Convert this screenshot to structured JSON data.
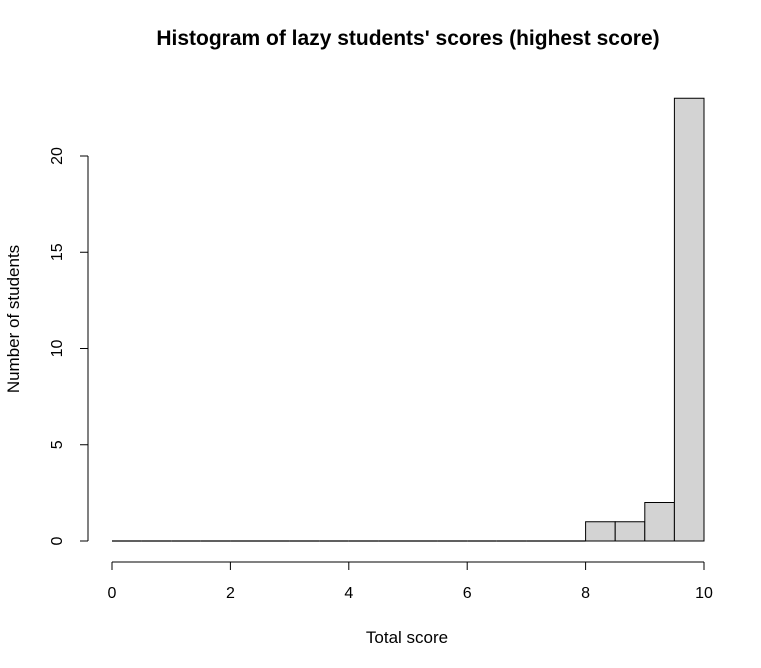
{
  "chart_data": {
    "type": "bar",
    "title": "Histogram of lazy students' scores (highest score)",
    "xlabel": "Total score",
    "ylabel": "Number of students",
    "xlim": [
      0,
      10
    ],
    "ylim": [
      0,
      23
    ],
    "x_ticks": [
      "0",
      "2",
      "4",
      "6",
      "8",
      "10"
    ],
    "y_ticks": [
      "0",
      "5",
      "10",
      "15",
      "20"
    ],
    "bins": [
      {
        "start": 0.0,
        "end": 0.5,
        "count": 0
      },
      {
        "start": 0.5,
        "end": 1.0,
        "count": 0
      },
      {
        "start": 1.0,
        "end": 1.5,
        "count": 0
      },
      {
        "start": 1.5,
        "end": 2.0,
        "count": 0
      },
      {
        "start": 2.0,
        "end": 2.5,
        "count": 0
      },
      {
        "start": 2.5,
        "end": 3.0,
        "count": 0
      },
      {
        "start": 3.0,
        "end": 3.5,
        "count": 0
      },
      {
        "start": 3.5,
        "end": 4.0,
        "count": 0
      },
      {
        "start": 4.0,
        "end": 4.5,
        "count": 0
      },
      {
        "start": 4.5,
        "end": 5.0,
        "count": 0
      },
      {
        "start": 5.0,
        "end": 5.5,
        "count": 0
      },
      {
        "start": 5.5,
        "end": 6.0,
        "count": 0
      },
      {
        "start": 6.0,
        "end": 6.5,
        "count": 0
      },
      {
        "start": 6.5,
        "end": 7.0,
        "count": 0
      },
      {
        "start": 7.0,
        "end": 7.5,
        "count": 0
      },
      {
        "start": 7.5,
        "end": 8.0,
        "count": 0
      },
      {
        "start": 8.0,
        "end": 8.5,
        "count": 1
      },
      {
        "start": 8.5,
        "end": 9.0,
        "count": 1
      },
      {
        "start": 9.0,
        "end": 9.5,
        "count": 2
      },
      {
        "start": 9.5,
        "end": 10.0,
        "count": 23
      }
    ],
    "bar_fill": "#d3d3d3",
    "bar_stroke": "#000000",
    "grid": false,
    "legend": "none"
  }
}
